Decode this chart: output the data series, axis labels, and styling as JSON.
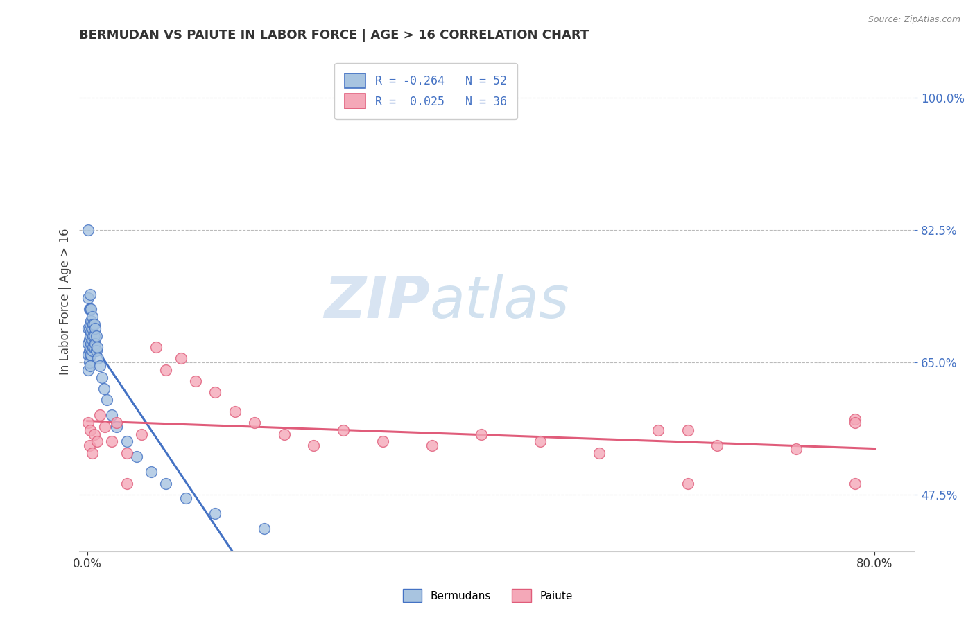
{
  "title": "BERMUDAN VS PAIUTE IN LABOR FORCE | AGE > 16 CORRELATION CHART",
  "source_text": "Source: ZipAtlas.com",
  "xlim": [
    -0.008,
    0.84
  ],
  "ylim": [
    0.4,
    1.06
  ],
  "ytick_positions": [
    0.475,
    0.65,
    0.825,
    1.0
  ],
  "xtick_positions": [
    0.0,
    0.8
  ],
  "bermudan_color": "#a8c4e0",
  "paiute_color": "#f4a8b8",
  "bermudan_edge_color": "#4472c4",
  "paiute_edge_color": "#e05c7a",
  "bermudan_line_color": "#4472c4",
  "paiute_line_color": "#e05c7a",
  "legend_bermudan_label": "R = -0.264   N = 52",
  "legend_paiute_label": "R =  0.025   N = 36",
  "ylabel": "In Labor Force | Age > 16",
  "watermark_zip": "ZIP",
  "watermark_atlas": "atlas",
  "grid_color": "#bbbbbb",
  "background_color": "#ffffff",
  "bermudan_x": [
    0.001,
    0.001,
    0.001,
    0.001,
    0.001,
    0.001,
    0.002,
    0.002,
    0.002,
    0.002,
    0.002,
    0.003,
    0.003,
    0.003,
    0.003,
    0.003,
    0.003,
    0.003,
    0.004,
    0.004,
    0.004,
    0.004,
    0.004,
    0.005,
    0.005,
    0.005,
    0.005,
    0.006,
    0.006,
    0.006,
    0.007,
    0.007,
    0.007,
    0.008,
    0.008,
    0.009,
    0.009,
    0.01,
    0.011,
    0.013,
    0.015,
    0.017,
    0.02,
    0.025,
    0.03,
    0.04,
    0.05,
    0.065,
    0.08,
    0.1,
    0.13,
    0.18
  ],
  "bermudan_y": [
    0.825,
    0.735,
    0.695,
    0.675,
    0.66,
    0.64,
    0.72,
    0.695,
    0.68,
    0.665,
    0.65,
    0.74,
    0.72,
    0.7,
    0.685,
    0.67,
    0.66,
    0.645,
    0.72,
    0.705,
    0.69,
    0.675,
    0.66,
    0.71,
    0.695,
    0.68,
    0.665,
    0.7,
    0.685,
    0.67,
    0.7,
    0.685,
    0.67,
    0.695,
    0.675,
    0.685,
    0.665,
    0.67,
    0.655,
    0.645,
    0.63,
    0.615,
    0.6,
    0.58,
    0.565,
    0.545,
    0.525,
    0.505,
    0.49,
    0.47,
    0.45,
    0.43
  ],
  "paiute_x": [
    0.001,
    0.002,
    0.003,
    0.005,
    0.007,
    0.01,
    0.013,
    0.018,
    0.025,
    0.03,
    0.04,
    0.055,
    0.07,
    0.08,
    0.095,
    0.11,
    0.13,
    0.15,
    0.17,
    0.2,
    0.23,
    0.26,
    0.3,
    0.35,
    0.4,
    0.46,
    0.52,
    0.58,
    0.64,
    0.72,
    0.78,
    0.78,
    0.78,
    0.61,
    0.61,
    0.04
  ],
  "paiute_y": [
    0.57,
    0.54,
    0.56,
    0.53,
    0.555,
    0.545,
    0.58,
    0.565,
    0.545,
    0.57,
    0.53,
    0.555,
    0.67,
    0.64,
    0.655,
    0.625,
    0.61,
    0.585,
    0.57,
    0.555,
    0.54,
    0.56,
    0.545,
    0.54,
    0.555,
    0.545,
    0.53,
    0.56,
    0.54,
    0.535,
    0.575,
    0.49,
    0.57,
    0.49,
    0.56,
    0.49
  ]
}
